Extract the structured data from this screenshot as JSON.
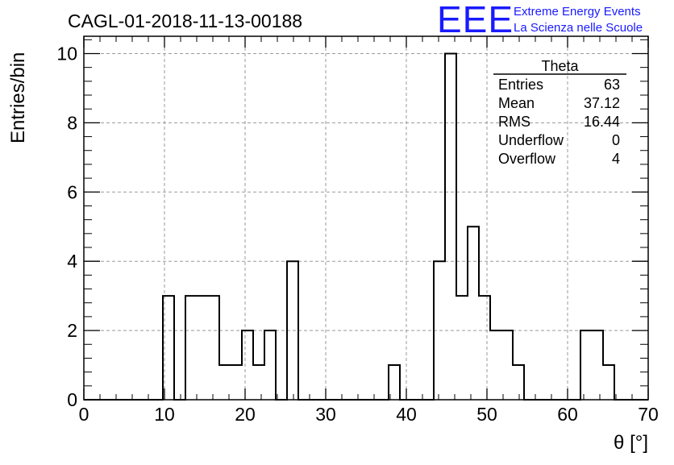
{
  "chart_data": {
    "type": "bar",
    "title": "CAGL-01-2018-11-13-00188",
    "xlabel": "θ [°]",
    "ylabel": "Entries/bin",
    "xlim": [
      0,
      70
    ],
    "ylim": [
      0,
      10.5
    ],
    "grid": true,
    "x_ticks": [
      "0",
      "10",
      "20",
      "30",
      "40",
      "50",
      "60",
      "70"
    ],
    "y_ticks": [
      "0",
      "2",
      "4",
      "6",
      "8",
      "10"
    ],
    "bin_width": 1.4,
    "bin_start": 0,
    "values": [
      0,
      0,
      0,
      0,
      0,
      0,
      0,
      3,
      0,
      3,
      3,
      3,
      1,
      1,
      2,
      1,
      2,
      0,
      4,
      0,
      0,
      0,
      0,
      0,
      0,
      0,
      0,
      1,
      0,
      0,
      0,
      4,
      10,
      3,
      5,
      3,
      2,
      2,
      1,
      0,
      0,
      0,
      0,
      0,
      2,
      2,
      1,
      0,
      0,
      0
    ],
    "stats": {
      "title": "Theta",
      "rows": [
        {
          "label": "Entries",
          "value": "63"
        },
        {
          "label": "Mean",
          "value": "37.12"
        },
        {
          "label": "RMS",
          "value": "16.44"
        },
        {
          "label": "Underflow",
          "value": "0"
        },
        {
          "label": "Overflow",
          "value": "4"
        }
      ]
    },
    "colors": {
      "line": "#000000",
      "grid": "#9a9a9a",
      "logo": "#1a1aff"
    }
  },
  "logo": {
    "mark": "EEE",
    "line1": "Extreme Energy Events",
    "line2": "La Scienza nelle Scuole"
  }
}
